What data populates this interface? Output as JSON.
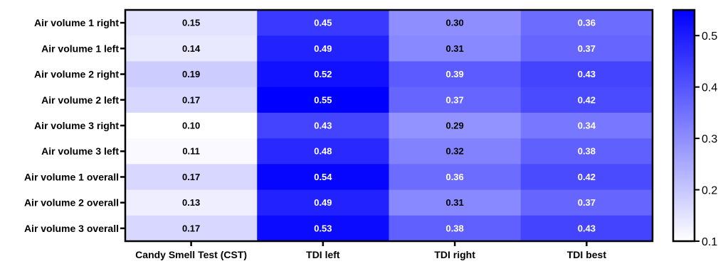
{
  "chart_data": {
    "type": "heatmap",
    "title": "",
    "xlabel": "",
    "ylabel": "",
    "rows": [
      "Air volume 1 right",
      "Air volume 1 left",
      "Air volume 2 right",
      "Air volume 2 left",
      "Air volume 3 right",
      "Air volume 3 left",
      "Air volume 1 overall",
      "Air volume 2 overall",
      "Air volume 3 overall"
    ],
    "columns": [
      "Candy Smell Test (CST)",
      "TDI left",
      "TDI right",
      "TDI best"
    ],
    "values": [
      [
        0.15,
        0.45,
        0.3,
        0.36
      ],
      [
        0.14,
        0.49,
        0.31,
        0.37
      ],
      [
        0.19,
        0.52,
        0.39,
        0.43
      ],
      [
        0.17,
        0.55,
        0.37,
        0.42
      ],
      [
        0.1,
        0.43,
        0.29,
        0.34
      ],
      [
        0.11,
        0.48,
        0.32,
        0.38
      ],
      [
        0.17,
        0.54,
        0.36,
        0.42
      ],
      [
        0.13,
        0.49,
        0.31,
        0.37
      ],
      [
        0.17,
        0.53,
        0.38,
        0.43
      ]
    ],
    "value_labels": [
      [
        "0.15",
        "0.45",
        "0.30",
        "0.36"
      ],
      [
        "0.14",
        "0.49",
        "0.31",
        "0.37"
      ],
      [
        "0.19",
        "0.52",
        "0.39",
        "0.43"
      ],
      [
        "0.17",
        "0.55",
        "0.37",
        "0.42"
      ],
      [
        "0.10",
        "0.43",
        "0.29",
        "0.34"
      ],
      [
        "0.11",
        "0.48",
        "0.32",
        "0.38"
      ],
      [
        "0.17",
        "0.54",
        "0.36",
        "0.42"
      ],
      [
        "0.13",
        "0.49",
        "0.31",
        "0.37"
      ],
      [
        "0.17",
        "0.53",
        "0.38",
        "0.43"
      ]
    ],
    "colorbar": {
      "min": 0.1,
      "max": 0.55,
      "ticks": [
        0.1,
        0.2,
        0.3,
        0.4,
        0.5
      ],
      "tick_labels": [
        "0.1",
        "0.2",
        "0.3",
        "0.4",
        "0.5"
      ],
      "color_low": "#ffffff",
      "color_high": "#0000ff"
    },
    "label_colors": {
      "on_light": "#000000",
      "on_dark": "#ffffff"
    },
    "grid": false,
    "legend": "right"
  }
}
